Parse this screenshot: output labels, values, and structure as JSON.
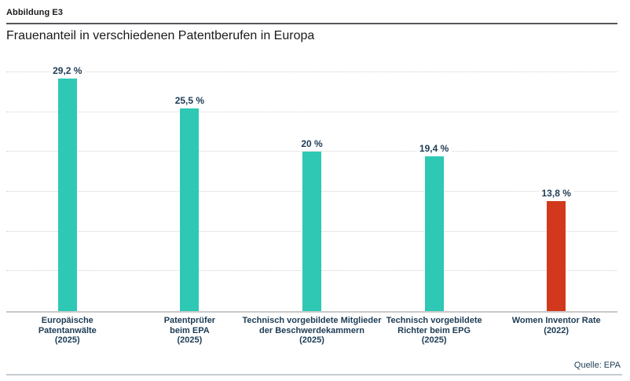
{
  "header": {
    "figure_label": "Abbildung E3",
    "title": "Frauenanteil in verschiedenen Patentberufen in Europa"
  },
  "footer": {
    "source": "Quelle: EPA"
  },
  "chart_data": {
    "type": "bar",
    "title": "Frauenanteil in verschiedenen Patentberufen in Europa",
    "categories": [
      "Europäische Patentanwälte (2025)",
      "Patentprüfer beim EPA (2025)",
      "Technisch vorgebildete Mitglieder der Beschwerdekammern (2025)",
      "Technisch vorgebildete Richter beim EPG (2025)",
      "Women Inventor Rate (2022)"
    ],
    "category_label_lines": [
      [
        "Europäische",
        "Patentanwälte",
        "(2025)"
      ],
      [
        "Patentprüfer",
        "beim EPA",
        "(2025)"
      ],
      [
        "Technisch vorgebildete Mitglieder",
        "der Beschwerdekammern",
        "(2025)"
      ],
      [
        "Technisch vorgebildete",
        "Richter beim EPG",
        "(2025)"
      ],
      [
        "Women Inventor Rate",
        "(2022)"
      ]
    ],
    "values": [
      29.2,
      25.5,
      20,
      19.4,
      13.8
    ],
    "value_labels": [
      "29,2 %",
      "25,5 %",
      "20 %",
      "19,4 %",
      "13,8 %"
    ],
    "bar_colors": [
      "#2ec8b5",
      "#2ec8b5",
      "#2ec8b5",
      "#2ec8b5",
      "#d2391c"
    ],
    "xlabel": "",
    "ylabel": "",
    "ylim": [
      0,
      30
    ],
    "gridline_step": 5,
    "grid": "horizontal-dotted",
    "legend": "none",
    "source": "Quelle: EPA",
    "colors": {
      "bar_teal": "#2ec8b5",
      "bar_red": "#d2391c",
      "label_text": "#1d3c55",
      "gridline": "#d2d2d2",
      "axis_line": "#c9c9c9"
    }
  }
}
